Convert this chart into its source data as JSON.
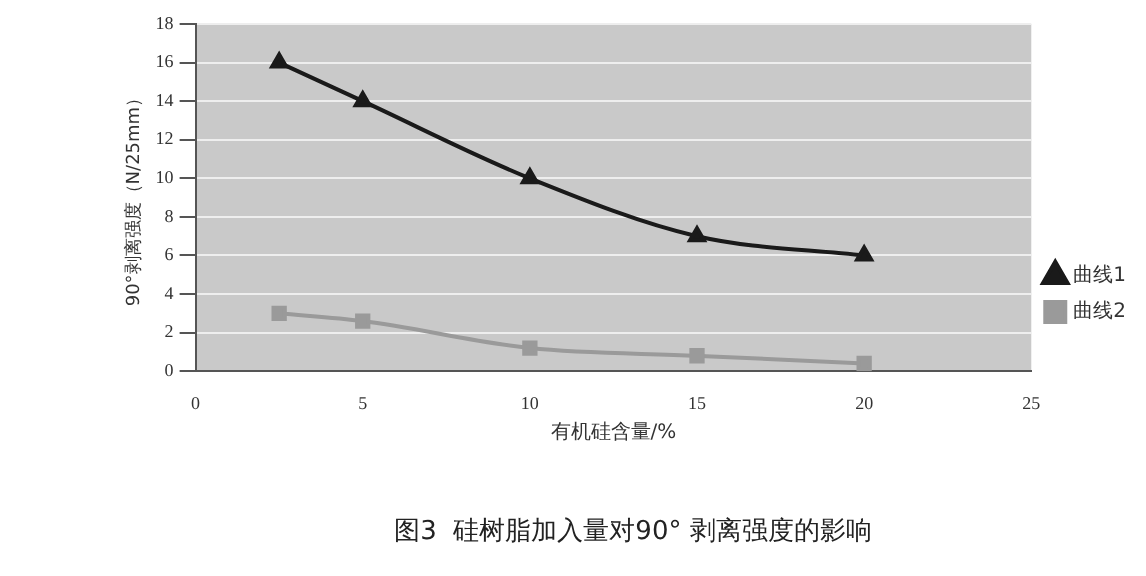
{
  "chart_data": {
    "type": "line",
    "title": "图3  硅树脂加入量对90° 剥离强度的影响",
    "xlabel": "有机硅含量/%",
    "ylabel": "90°剥离强度（N/25mm）",
    "x": [
      2.5,
      5,
      10,
      15,
      20
    ],
    "series": [
      {
        "name": "曲线1",
        "color": "#1a1a1a",
        "marker": "triangle",
        "values": [
          16,
          14,
          10,
          7,
          6
        ]
      },
      {
        "name": "曲线2",
        "color": "#9a9a9a",
        "marker": "square",
        "values": [
          3,
          2.6,
          1.2,
          0.8,
          0.4
        ]
      }
    ],
    "xlim": [
      0,
      25
    ],
    "xticks": [
      0,
      5,
      10,
      15,
      20,
      25
    ],
    "ylim": [
      0,
      18
    ],
    "yticks": [
      0,
      2,
      4,
      6,
      8,
      10,
      12,
      14,
      16,
      18
    ],
    "grid": "y",
    "legend": "right",
    "line_style": "solid"
  }
}
